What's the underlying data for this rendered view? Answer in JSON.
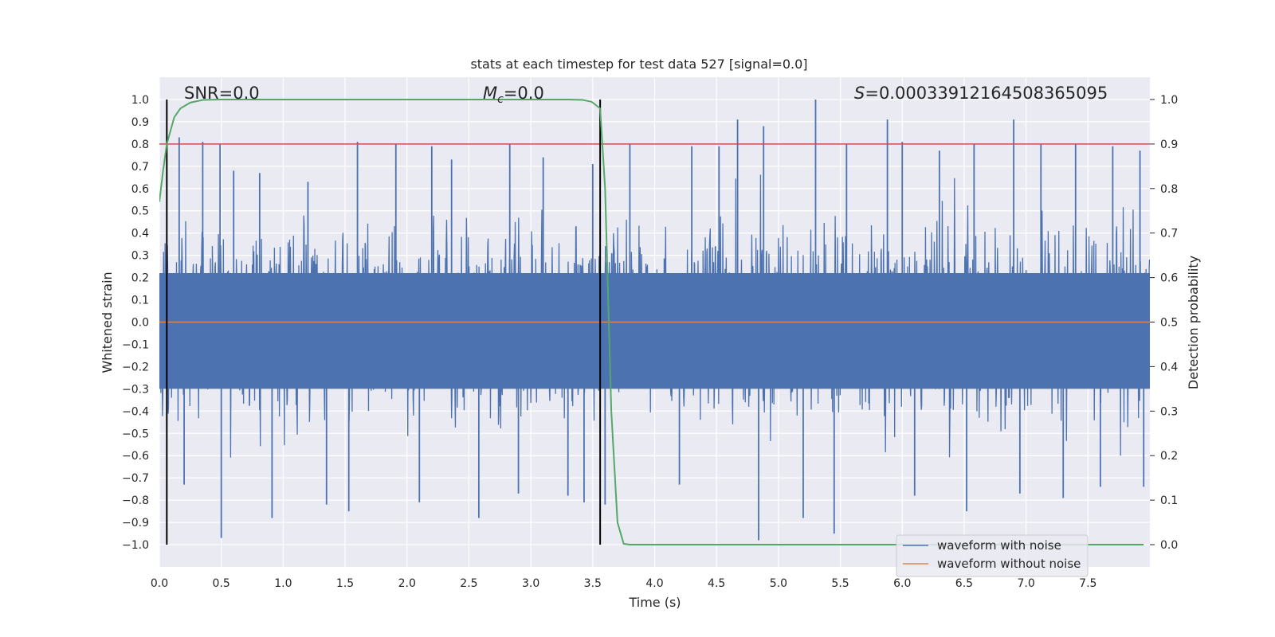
{
  "chart_data": {
    "type": "line",
    "title": "stats at each timestep for test data 527 [signal=0.0]",
    "xlabel": "Time (s)",
    "ylabel": "Whitened strain",
    "y2label": "Detection probability",
    "xlim": [
      0.0,
      8.0
    ],
    "ylim": [
      -1.1,
      1.1
    ],
    "y2lim": [
      -0.05,
      1.05
    ],
    "x_ticks": [
      0.0,
      0.5,
      1.0,
      1.5,
      2.0,
      2.5,
      3.0,
      3.5,
      4.0,
      4.5,
      5.0,
      5.5,
      6.0,
      6.5,
      7.0,
      7.5
    ],
    "x_tick_labels": [
      "0.0",
      "0.5",
      "1.0",
      "1.5",
      "2.0",
      "2.5",
      "3.0",
      "3.5",
      "4.0",
      "4.5",
      "5.0",
      "5.5",
      "6.0",
      "6.5",
      "7.0",
      "7.5"
    ],
    "y_ticks": [
      1.0,
      0.9,
      0.8,
      0.7,
      0.6,
      0.5,
      0.4,
      0.3,
      0.2,
      0.1,
      0.0,
      -0.1,
      -0.2,
      -0.3,
      -0.4,
      -0.5,
      -0.6,
      -0.7,
      -0.8,
      -0.9,
      -1.0
    ],
    "y_tick_labels": [
      "1.0",
      "0.9",
      "0.8",
      "0.7",
      "0.6",
      "0.5",
      "0.4",
      "0.3",
      "0.2",
      "0.1",
      "0.0",
      "−0.1",
      "−0.2",
      "−0.3",
      "−0.4",
      "−0.5",
      "−0.6",
      "−0.7",
      "−0.8",
      "−0.9",
      "−1.0"
    ],
    "y2_ticks": [
      1.0,
      0.9,
      0.8,
      0.7,
      0.6,
      0.5,
      0.4,
      0.3,
      0.2,
      0.1,
      0.0
    ],
    "y2_tick_labels": [
      "1.0",
      "0.9",
      "0.8",
      "0.7",
      "0.6",
      "0.5",
      "0.4",
      "0.3",
      "0.2",
      "0.1",
      "0.0"
    ],
    "grid": true,
    "legend_position": "bottom-right",
    "annotations": {
      "snr": "SNR=0.0",
      "mc_symbol": "M",
      "mc_sub": "c",
      "mc_value": "=0.0",
      "s_symbol": "S",
      "s_value": "=0.00033912164508365095"
    },
    "vertical_lines_x": [
      0.06,
      3.56
    ],
    "threshold_y2": 0.9,
    "series": [
      {
        "name": "waveform with noise",
        "color": "#4c72b0",
        "description_values": "dense whitened noise, envelope roughly within ±0.6 with spikes up to 1.0 and down to -1.0",
        "peaks": [
          [
            0.16,
            0.83
          ],
          [
            0.35,
            0.81
          ],
          [
            0.49,
            0.8
          ],
          [
            0.6,
            0.68
          ],
          [
            0.81,
            0.67
          ],
          [
            1.2,
            0.63
          ],
          [
            1.6,
            0.81
          ],
          [
            1.91,
            0.8
          ],
          [
            2.2,
            0.79
          ],
          [
            2.36,
            0.73
          ],
          [
            2.83,
            0.8
          ],
          [
            3.1,
            0.74
          ],
          [
            3.5,
            0.71
          ],
          [
            3.8,
            0.8
          ],
          [
            4.3,
            0.79
          ],
          [
            4.52,
            0.79
          ],
          [
            4.67,
            0.91
          ],
          [
            4.88,
            0.88
          ],
          [
            5.3,
            1.0
          ],
          [
            5.55,
            0.8
          ],
          [
            5.88,
            0.91
          ],
          [
            6.0,
            0.81
          ],
          [
            6.3,
            0.77
          ],
          [
            6.58,
            0.8
          ],
          [
            6.9,
            0.91
          ],
          [
            7.12,
            0.8
          ],
          [
            7.4,
            0.8
          ],
          [
            7.7,
            0.79
          ],
          [
            7.92,
            0.77
          ]
        ],
        "troughs": [
          [
            0.2,
            -0.73
          ],
          [
            0.5,
            -0.97
          ],
          [
            0.91,
            -0.88
          ],
          [
            1.35,
            -0.82
          ],
          [
            1.53,
            -0.85
          ],
          [
            2.1,
            -0.81
          ],
          [
            2.58,
            -0.88
          ],
          [
            2.9,
            -0.77
          ],
          [
            3.3,
            -0.78
          ],
          [
            3.43,
            -0.81
          ],
          [
            3.6,
            -0.82
          ],
          [
            4.2,
            -0.73
          ],
          [
            4.84,
            -0.98
          ],
          [
            5.2,
            -0.88
          ],
          [
            5.45,
            -0.95
          ],
          [
            6.1,
            -0.78
          ],
          [
            6.52,
            -0.85
          ],
          [
            6.95,
            -0.77
          ],
          [
            7.3,
            -0.79
          ],
          [
            7.6,
            -0.74
          ],
          [
            7.95,
            -0.74
          ]
        ]
      },
      {
        "name": "waveform without noise",
        "color": "#dd8452",
        "values_note": "flat at 0"
      },
      {
        "name": "detection probability",
        "color": "#55a868",
        "axis": "right",
        "x": [
          0.0,
          0.03,
          0.06,
          0.12,
          0.17,
          0.25,
          0.35,
          0.5,
          1.0,
          2.0,
          3.0,
          3.3,
          3.42,
          3.49,
          3.56,
          3.6,
          3.65,
          3.7,
          3.75,
          3.8,
          4.0,
          5.0,
          6.0,
          7.0,
          7.95
        ],
        "values": [
          0.77,
          0.84,
          0.9,
          0.96,
          0.98,
          0.993,
          0.999,
          1.0,
          1.0,
          1.0,
          1.0,
          1.0,
          0.999,
          0.995,
          0.98,
          0.8,
          0.3,
          0.05,
          0.002,
          0.0,
          0.0,
          0.0,
          0.0,
          0.0,
          0.0
        ]
      }
    ],
    "legend": [
      "waveform with noise",
      "waveform without noise"
    ]
  }
}
